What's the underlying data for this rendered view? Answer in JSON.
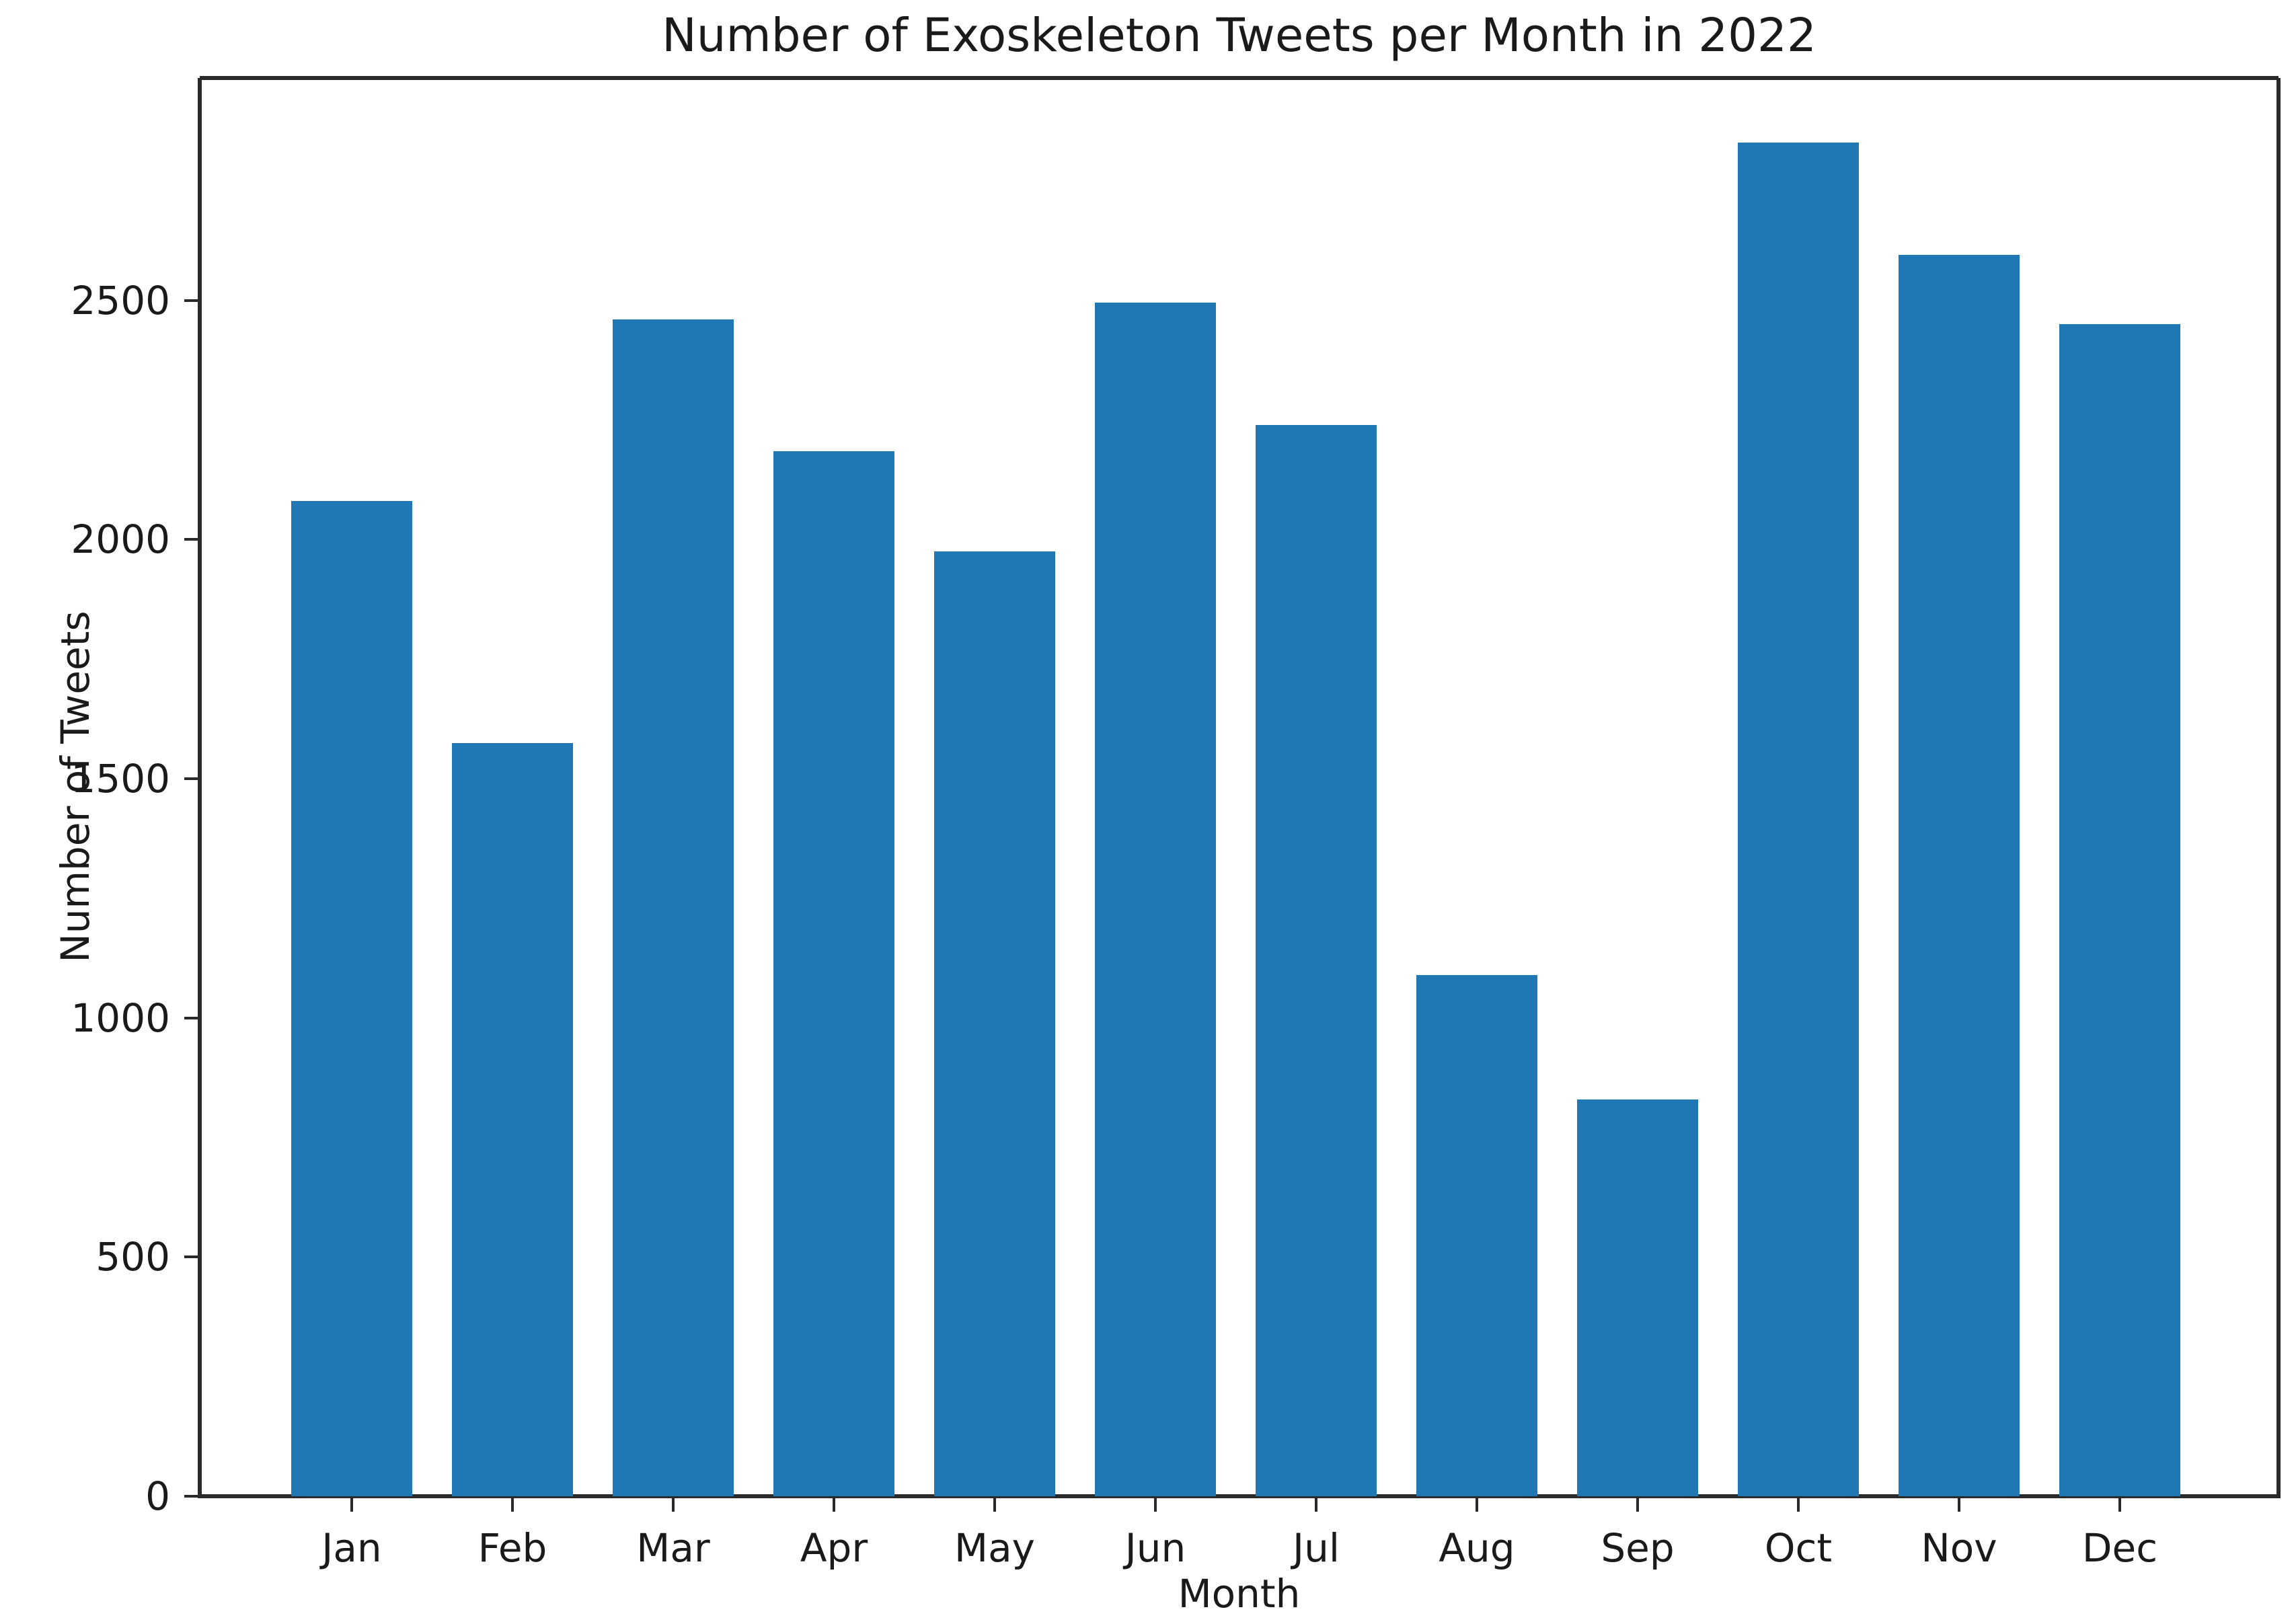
{
  "figure": {
    "background": "#ffffff",
    "spine_color": "#2a2a2a",
    "text_color": "#1a1a1a"
  },
  "chart_data": {
    "type": "bar",
    "title": "Number of Exoskeleton Tweets per Month in 2022",
    "xlabel": "Month",
    "ylabel": "Number of Tweets",
    "categories": [
      "Jan",
      "Feb",
      "Mar",
      "Apr",
      "May",
      "Jun",
      "Jul",
      "Aug",
      "Sep",
      "Oct",
      "Nov",
      "Dec"
    ],
    "values": [
      2080,
      1575,
      2460,
      2185,
      1975,
      2495,
      2240,
      1090,
      830,
      2830,
      2595,
      2450
    ],
    "bar_color": "#1f77b4",
    "ylim": [
      0,
      2965
    ],
    "yticks": [
      0,
      500,
      1000,
      1500,
      2000,
      2500
    ],
    "grid": false,
    "legend": null
  }
}
